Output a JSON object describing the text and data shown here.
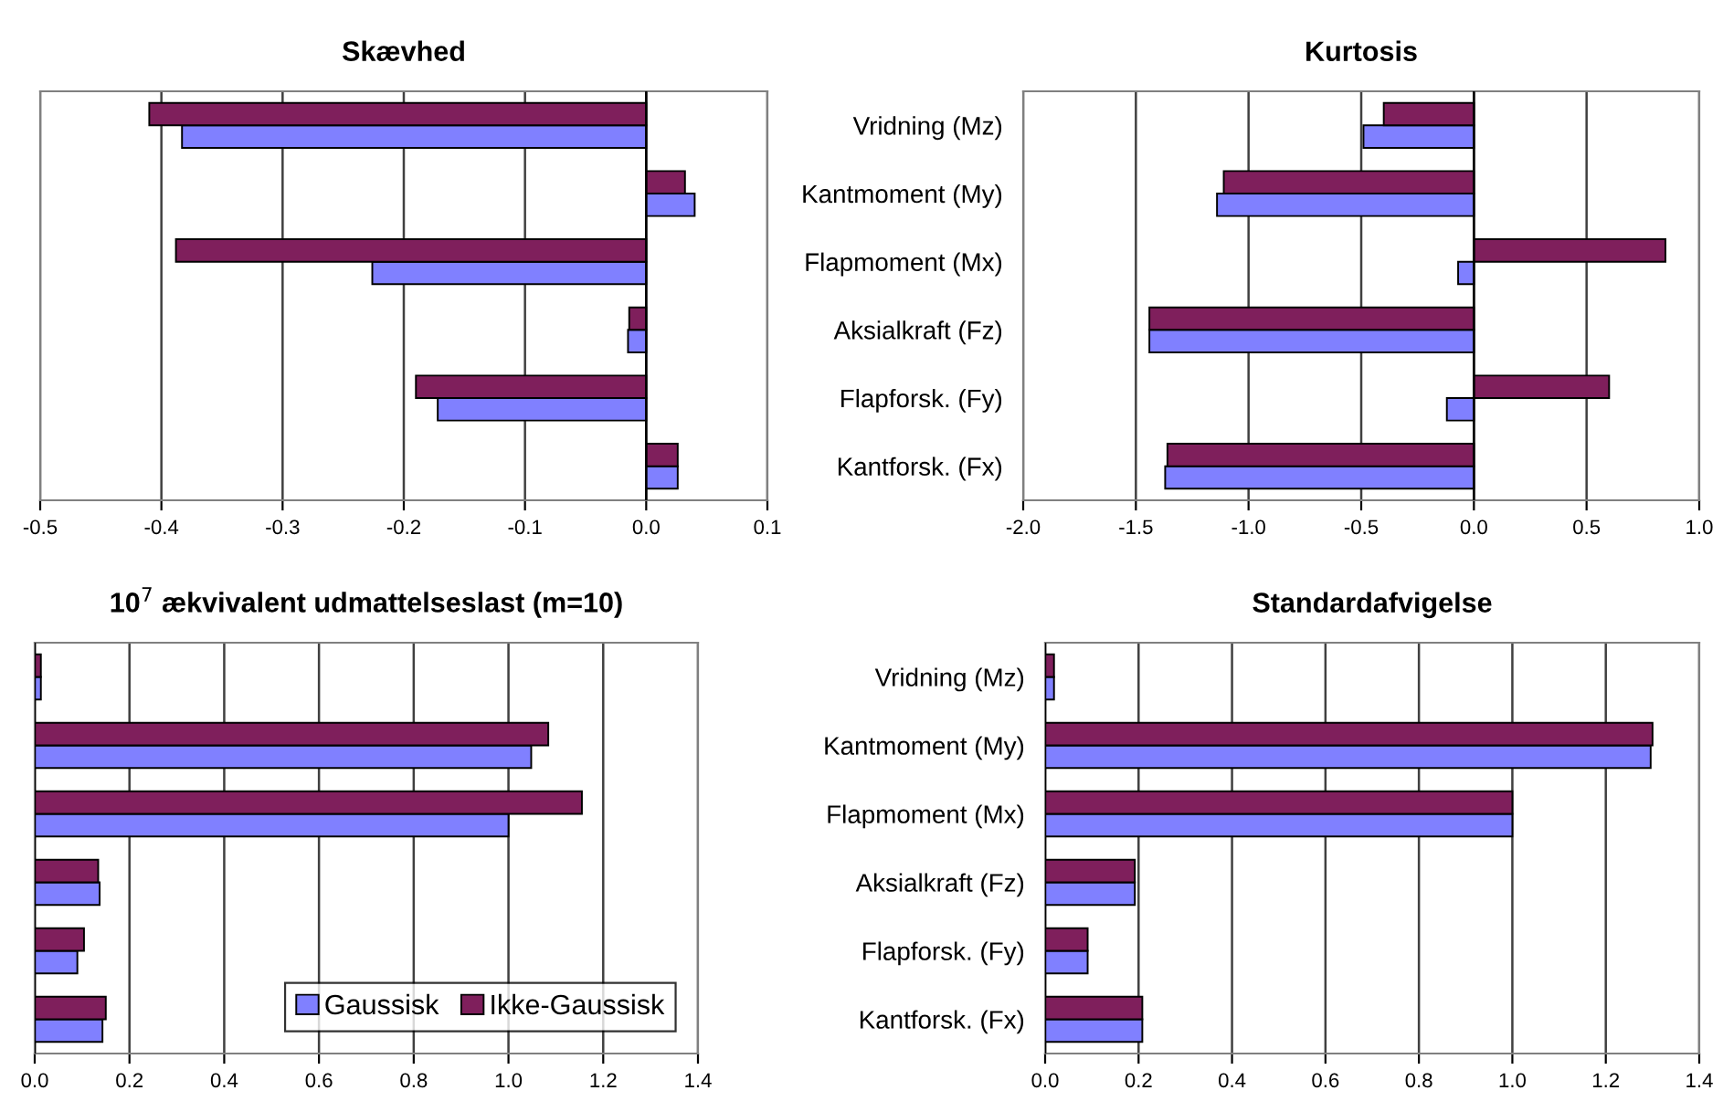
{
  "chart_data": [
    {
      "type": "bar",
      "orientation": "horizontal",
      "title": "Skævhed",
      "categories": [
        null,
        null,
        null,
        null,
        null,
        null
      ],
      "series": [
        {
          "color": "#8080ff",
          "values": [
            -0.383,
            0.04,
            -0.226,
            -0.015,
            -0.172,
            0.026
          ]
        },
        {
          "color": "#7f1f5c",
          "values": [
            -0.41,
            0.032,
            -0.388,
            -0.014,
            -0.19,
            0.026
          ]
        }
      ],
      "xlim": [
        -0.5,
        0.1
      ],
      "xticks": [
        {
          "value": -0.5,
          "label": "-0.5"
        },
        {
          "value": -0.4,
          "label": "-0.4"
        },
        {
          "value": -0.3,
          "label": "-0.3"
        },
        {
          "value": -0.2,
          "label": "-0.2"
        },
        {
          "value": -0.1,
          "label": "-0.1"
        },
        {
          "value": 0,
          "label": "0.0"
        },
        0.1
      ],
      "grid": "x",
      "legend": false
    },
    {
      "type": "bar",
      "orientation": "horizontal",
      "title": "Kurtosis",
      "categories": [
        "Vridning (Mz)",
        "Kantmoment (My)",
        "Flapmoment (Mx)",
        "Aksialkraft (Fz)",
        "Flapforsk. (Fy)",
        "Kantforsk. (Fx)"
      ],
      "series": [
        {
          "color": "#8080ff",
          "values": [
            -0.49,
            -1.14,
            -0.07,
            -1.44,
            -0.12,
            -1.37
          ]
        },
        {
          "color": "#7f1f5c",
          "values": [
            -0.4,
            -1.11,
            0.85,
            -1.44,
            0.6,
            -1.36
          ]
        }
      ],
      "xlim": [
        -2.0,
        1.0
      ],
      "xticks": [
        {
          "value": -2,
          "label": "-2.0"
        },
        {
          "value": -1.5,
          "label": "-1.5"
        },
        {
          "value": -1,
          "label": "-1.0"
        },
        {
          "value": -0.5,
          "label": "-0.5"
        },
        {
          "value": 0,
          "label": "0.0"
        },
        0.5,
        {
          "value": 1,
          "label": "1.0"
        }
      ],
      "grid": "x",
      "legend": false
    },
    {
      "type": "bar",
      "orientation": "horizontal",
      "title": "10$^{7}$ ækvivalent udmattelseslast (m=10)",
      "categories": [
        null,
        null,
        null,
        null,
        null,
        null
      ],
      "series": [
        {
          "name": "Gaussisk",
          "color": "#8080ff",
          "values": [
            0.013,
            1.048,
            1.0,
            0.137,
            0.09,
            0.143
          ]
        },
        {
          "name": "Ikke-Gaussisk",
          "color": "#7f1f5c",
          "values": [
            0.013,
            1.084,
            1.155,
            0.134,
            0.104,
            0.15
          ]
        }
      ],
      "xlim": [
        0,
        1.4
      ],
      "xticks": [
        {
          "value": 0,
          "label": "0.0"
        },
        0.2,
        0.4,
        0.6,
        0.8,
        {
          "value": 1,
          "label": "1.0"
        },
        1.2,
        1.4
      ],
      "grid": "x",
      "legend": "bottom right"
    },
    {
      "type": "bar",
      "orientation": "horizontal",
      "title": "Standardafvigelse",
      "categories": [
        "Vridning (Mz)",
        "Kantmoment (My)",
        "Flapmoment (Mx)",
        "Aksialkraft (Fz)",
        "Flapforsk. (Fy)",
        "Kantforsk. (Fx)"
      ],
      "series": [
        {
          "color": "#8080ff",
          "values": [
            0.019,
            1.296,
            1.0,
            0.192,
            0.091,
            0.208
          ]
        },
        {
          "color": "#7f1f5c",
          "values": [
            0.019,
            1.3,
            1.0,
            0.192,
            0.091,
            0.208
          ]
        }
      ],
      "xlim": [
        0,
        1.4
      ],
      "xticks": [
        {
          "value": 0,
          "label": "0.0"
        },
        0.2,
        0.4,
        0.6,
        0.8,
        {
          "value": 1,
          "label": "1.0"
        },
        1.2,
        1.4
      ],
      "grid": "x",
      "legend": false
    }
  ]
}
